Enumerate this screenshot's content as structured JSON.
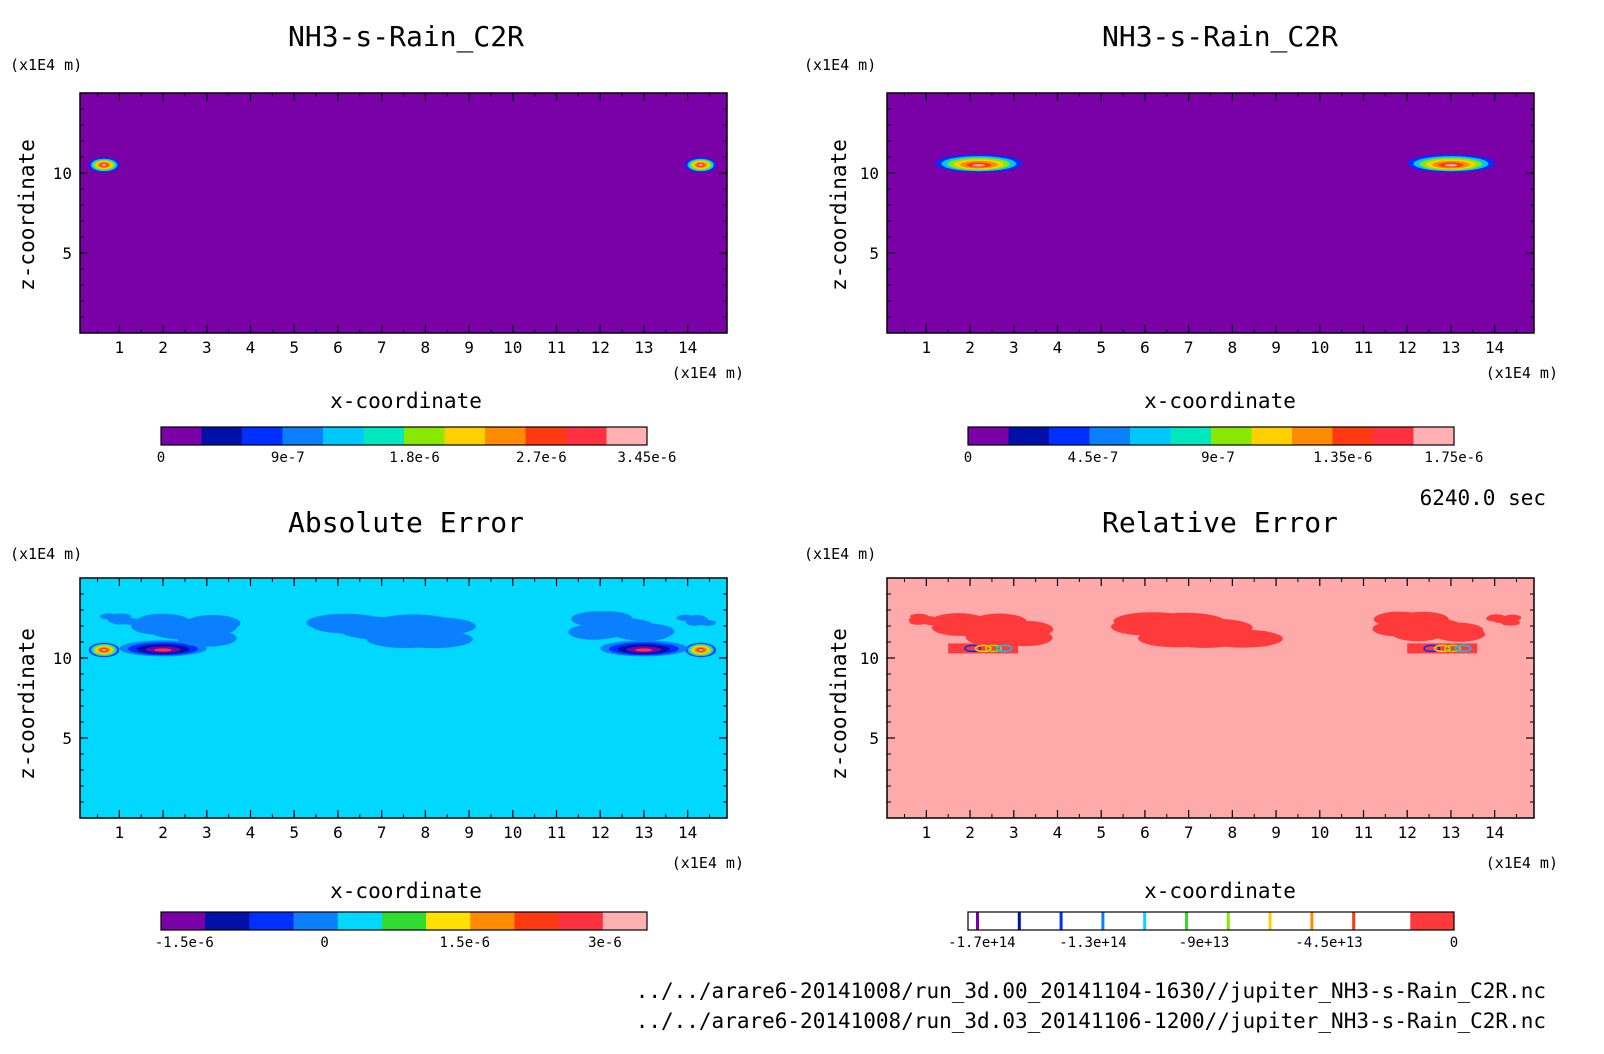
{
  "chart_data": [
    {
      "type": "heatmap",
      "title": "NH3-s-Rain_C2R",
      "xlabel": "x-coordinate",
      "ylabel": "z-coordinate",
      "x_unit": "(x1E4 m)",
      "y_unit": "(x1E4 m)",
      "x_ticks": [
        "1",
        "2",
        "3",
        "4",
        "5",
        "6",
        "7",
        "8",
        "9",
        "10",
        "11",
        "12",
        "13",
        "14"
      ],
      "y_ticks": [
        "5",
        "10"
      ],
      "xlim": [
        0.1,
        14.9
      ],
      "ylim": [
        0,
        15
      ],
      "colorbar_ticks": [
        {
          "value": 0,
          "label": "0"
        },
        {
          "value": 9e-07,
          "label": "9e-7"
        },
        {
          "value": 1.8e-06,
          "label": "1.8e-6"
        },
        {
          "value": 2.7e-06,
          "label": "2.7e-6"
        },
        {
          "value": 3.45e-06,
          "label": "3.45e-6"
        }
      ],
      "colorbar_range": [
        0,
        3.45e-06
      ],
      "colorbar_colors": [
        "#7a00a8",
        "#0010a8",
        "#0030ff",
        "#0a80ff",
        "#00c8ff",
        "#00e8c0",
        "#88e800",
        "#ffd000",
        "#ff8c00",
        "#ff3a10",
        "#ff3040",
        "#ffb0b0"
      ],
      "background_color": "#7a00a8",
      "features": [
        {
          "kind": "blob",
          "x": 0.65,
          "z": 10.5,
          "width": 0.7,
          "height": 0.9
        },
        {
          "kind": "blob",
          "x": 14.3,
          "z": 10.5,
          "width": 0.7,
          "height": 0.9
        }
      ]
    },
    {
      "type": "heatmap",
      "title": "NH3-s-Rain_C2R",
      "xlabel": "x-coordinate",
      "ylabel": "z-coordinate",
      "x_unit": "(x1E4 m)",
      "y_unit": "(x1E4 m)",
      "x_ticks": [
        "1",
        "2",
        "3",
        "4",
        "5",
        "6",
        "7",
        "8",
        "9",
        "10",
        "11",
        "12",
        "13",
        "14"
      ],
      "y_ticks": [
        "5",
        "10"
      ],
      "xlim": [
        0.1,
        14.9
      ],
      "ylim": [
        0,
        15
      ],
      "colorbar_ticks": [
        {
          "value": 0,
          "label": "0"
        },
        {
          "value": 4.5e-07,
          "label": "4.5e-7"
        },
        {
          "value": 9e-07,
          "label": "9e-7"
        },
        {
          "value": 1.35e-06,
          "label": "1.35e-6"
        },
        {
          "value": 1.75e-06,
          "label": "1.75e-6"
        }
      ],
      "colorbar_range": [
        0,
        1.75e-06
      ],
      "colorbar_colors": [
        "#7a00a8",
        "#0010a8",
        "#0030ff",
        "#0a80ff",
        "#00c8ff",
        "#00e8c0",
        "#88e800",
        "#ffd000",
        "#ff8c00",
        "#ff3a10",
        "#ff3040",
        "#ffb0b0"
      ],
      "background_color": "#7a00a8",
      "features": [
        {
          "kind": "band",
          "x": 2.2,
          "z": 10.6,
          "width": 2.0,
          "height": 1.1
        },
        {
          "kind": "band",
          "x": 13.0,
          "z": 10.6,
          "width": 2.0,
          "height": 1.1
        }
      ]
    },
    {
      "type": "heatmap",
      "title": "Absolute Error",
      "xlabel": "x-coordinate",
      "ylabel": "z-coordinate",
      "x_unit": "(x1E4 m)",
      "y_unit": "(x1E4 m)",
      "x_ticks": [
        "1",
        "2",
        "3",
        "4",
        "5",
        "6",
        "7",
        "8",
        "9",
        "10",
        "11",
        "12",
        "13",
        "14"
      ],
      "y_ticks": [
        "5",
        "10"
      ],
      "xlim": [
        0.1,
        14.9
      ],
      "ylim": [
        0,
        15
      ],
      "colorbar_ticks": [
        {
          "value": -1.5e-06,
          "label": "-1.5e-6"
        },
        {
          "value": 0,
          "label": "0"
        },
        {
          "value": 1.5e-06,
          "label": "1.5e-6"
        },
        {
          "value": 3e-06,
          "label": "3e-6"
        }
      ],
      "colorbar_range": [
        -1.75e-06,
        3.45e-06
      ],
      "colorbar_colors": [
        "#7a00a8",
        "#0010a8",
        "#0030ff",
        "#0a80ff",
        "#00d8ff",
        "#30dc30",
        "#ffe000",
        "#ff8c00",
        "#ff3a10",
        "#ff3040",
        "#ffb0b0"
      ],
      "background_color": "#00d8ff",
      "features": [
        {
          "kind": "blob",
          "x": 0.65,
          "z": 10.5,
          "width": 0.7,
          "height": 0.9
        },
        {
          "kind": "blob",
          "x": 14.3,
          "z": 10.5,
          "width": 0.7,
          "height": 0.9
        },
        {
          "kind": "band",
          "x": 2.0,
          "z": 10.6,
          "width": 2.0,
          "height": 1.0
        },
        {
          "kind": "band",
          "x": 13.0,
          "z": 10.6,
          "width": 2.0,
          "height": 1.0
        },
        {
          "kind": "patch",
          "x": 2.5,
          "z": 11.8,
          "width": 2.8,
          "height": 2.6
        },
        {
          "kind": "patch",
          "x": 1.0,
          "z": 12.4,
          "width": 0.9,
          "height": 0.9
        },
        {
          "kind": "patch",
          "x": 7.2,
          "z": 11.8,
          "width": 4.0,
          "height": 2.8
        },
        {
          "kind": "patch",
          "x": 12.5,
          "z": 11.9,
          "width": 2.6,
          "height": 2.4
        },
        {
          "kind": "patch",
          "x": 14.2,
          "z": 12.4,
          "width": 0.9,
          "height": 0.9
        }
      ]
    },
    {
      "type": "heatmap",
      "title": "Relative Error",
      "xlabel": "x-coordinate",
      "ylabel": "z-coordinate",
      "x_unit": "(x1E4 m)",
      "y_unit": "(x1E4 m)",
      "x_ticks": [
        "1",
        "2",
        "3",
        "4",
        "5",
        "6",
        "7",
        "8",
        "9",
        "10",
        "11",
        "12",
        "13",
        "14"
      ],
      "y_ticks": [
        "5",
        "10"
      ],
      "xlim": [
        0.1,
        14.9
      ],
      "ylim": [
        0,
        15
      ],
      "colorbar_ticks": [
        {
          "value": -170000000000000.0,
          "label": "-1.7e+14"
        },
        {
          "value": -130000000000000.0,
          "label": "-1.3e+14"
        },
        {
          "value": -90000000000000.0,
          "label": "-9e+13"
        },
        {
          "value": -45000000000000.0,
          "label": "-4.5e+13"
        },
        {
          "value": 0,
          "label": "0"
        }
      ],
      "colorbar_range": [
        -175000000000000.0,
        0
      ],
      "colorbar_line_colors": [
        "#7a00a8",
        "#0010a8",
        "#0030ff",
        "#0a80ff",
        "#00d8ff",
        "#30dc30",
        "#88e800",
        "#ffd000",
        "#ff8c00",
        "#ff3a10"
      ],
      "colorbar_top_color": "#ff3a3a",
      "background_color": "#ffaaaa",
      "features": [
        {
          "kind": "patch",
          "x": 2.5,
          "z": 11.8,
          "width": 2.8,
          "height": 2.6
        },
        {
          "kind": "patch",
          "x": 1.0,
          "z": 12.4,
          "width": 0.9,
          "height": 0.9
        },
        {
          "kind": "patch",
          "x": 7.2,
          "z": 11.8,
          "width": 4.0,
          "height": 2.8
        },
        {
          "kind": "patch",
          "x": 12.5,
          "z": 11.9,
          "width": 2.6,
          "height": 2.4
        },
        {
          "kind": "patch",
          "x": 14.2,
          "z": 12.4,
          "width": 0.9,
          "height": 0.9
        },
        {
          "kind": "line",
          "x": 2.3,
          "z": 10.6,
          "width": 1.6
        },
        {
          "kind": "line",
          "x": 12.8,
          "z": 10.6,
          "width": 1.6
        }
      ]
    }
  ],
  "time_label": "6240.0 sec",
  "files": [
    "../../arare6-20141008/run_3d.00_20141104-1630//jupiter_NH3-s-Rain_C2R.nc",
    "../../arare6-20141008/run_3d.03_20141106-1200//jupiter_NH3-s-Rain_C2R.nc"
  ]
}
